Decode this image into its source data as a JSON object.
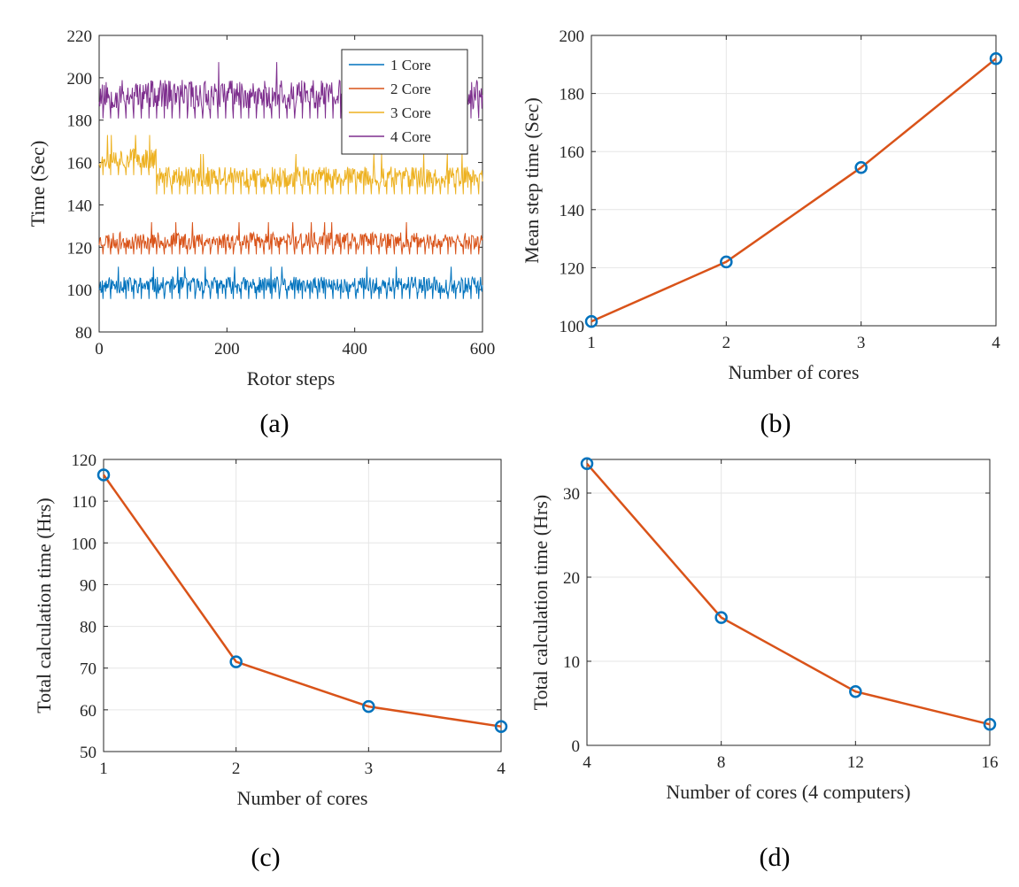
{
  "figure": {
    "colors": {
      "core1": "#0072BD",
      "core2": "#D95319",
      "core3": "#EDB120",
      "core4": "#7E2F8E",
      "line": "#D95319",
      "marker": "#0072BD",
      "grid": "#e6e6e6",
      "axis": "#262626"
    }
  },
  "chart_data": [
    {
      "id": "a",
      "type": "line",
      "panel_label": "(a)",
      "xlabel": "Rotor steps",
      "ylabel": "Time (Sec)",
      "xlim": [
        0,
        600
      ],
      "ylim": [
        80,
        220
      ],
      "xticks": [
        0,
        200,
        400,
        600
      ],
      "yticks": [
        80,
        100,
        120,
        140,
        160,
        180,
        200,
        220
      ],
      "grid": false,
      "legend_position": "top-right",
      "series_note": "noisy per-step timings; base level and approximate spread per series",
      "series": [
        {
          "name": "1 Core",
          "level": 102,
          "spread": 4,
          "color_key": "core1",
          "seed": 11
        },
        {
          "name": "2 Core",
          "level": 123,
          "spread": 4,
          "color_key": "core2",
          "seed": 23
        },
        {
          "name": "3 Core",
          "level": 153,
          "spread": 5,
          "early_level": 162,
          "early_until": 90,
          "color_key": "core3",
          "seed": 37
        },
        {
          "name": "4 Core",
          "level": 192,
          "spread": 7,
          "color_key": "core4",
          "seed": 53
        }
      ]
    },
    {
      "id": "b",
      "type": "line",
      "panel_label": "(b)",
      "xlabel": "Number of cores",
      "ylabel": "Mean step time (Sec)",
      "xlim": [
        1,
        4
      ],
      "ylim": [
        100,
        200
      ],
      "xticks": [
        1,
        2,
        3,
        4
      ],
      "yticks": [
        100,
        120,
        140,
        160,
        180,
        200
      ],
      "grid": true,
      "x": [
        1,
        2,
        3,
        4
      ],
      "y": [
        101.5,
        122,
        154.5,
        192
      ]
    },
    {
      "id": "c",
      "type": "line",
      "panel_label": "(c)",
      "xlabel": "Number of cores",
      "ylabel": "Total calculation time (Hrs)",
      "xlim": [
        1,
        4
      ],
      "ylim": [
        50,
        120
      ],
      "xticks": [
        1,
        2,
        3,
        4
      ],
      "yticks": [
        50,
        60,
        70,
        80,
        90,
        100,
        110,
        120
      ],
      "grid": true,
      "x": [
        1,
        2,
        3,
        4
      ],
      "y": [
        116.3,
        71.5,
        60.8,
        56
      ]
    },
    {
      "id": "d",
      "type": "line",
      "panel_label": "(d)",
      "xlabel": "Number of cores (4 computers)",
      "ylabel": "Total calculation time (Hrs)",
      "xlim": [
        4,
        16
      ],
      "ylim": [
        0,
        34
      ],
      "xticks": [
        4,
        8,
        12,
        16
      ],
      "yticks": [
        0,
        10,
        20,
        30
      ],
      "grid": true,
      "x": [
        4,
        8,
        12,
        16
      ],
      "y": [
        33.5,
        15.2,
        6.4,
        2.5
      ]
    }
  ]
}
